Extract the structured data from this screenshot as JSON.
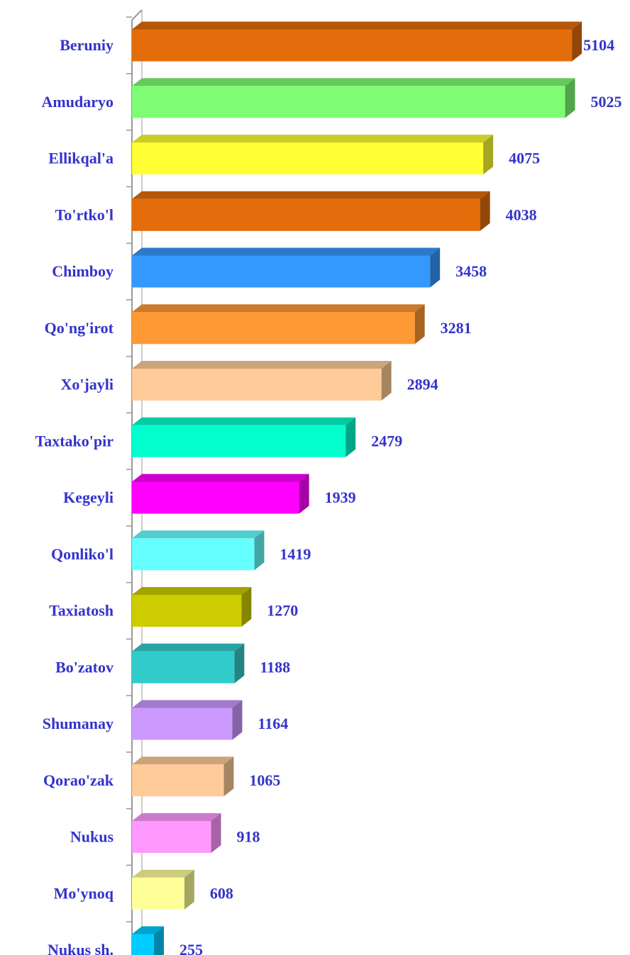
{
  "chart_data": {
    "type": "bar",
    "orientation": "horizontal",
    "categories": [
      "Beruniy",
      "Amudaryo",
      "Ellikqal'a",
      "To'rtko'l",
      "Chimboy",
      "Qo'ng'irot",
      "Xo'jayli",
      "Taxtako'pir",
      "Kegeyli",
      "Qonliko'l",
      "Taxiatosh",
      "Bo'zatov",
      "Shumanay",
      "Qorao'zak",
      "Nukus",
      "Mo'ynoq",
      "Nukus sh."
    ],
    "values": [
      5104,
      5025,
      4075,
      4038,
      3458,
      3281,
      2894,
      2479,
      1939,
      1419,
      1270,
      1188,
      1164,
      1065,
      918,
      608,
      255
    ],
    "colors": [
      "#e46c0a",
      "#7efc74",
      "#ffff33",
      "#e46c0a",
      "#3399ff",
      "#ff9933",
      "#ffcc99",
      "#00ffcc",
      "#ff00ff",
      "#66ffff",
      "#cccc00",
      "#33cccc",
      "#cc99ff",
      "#ffcc99",
      "#ff99ff",
      "#ffff99",
      "#00ccff"
    ]
  }
}
